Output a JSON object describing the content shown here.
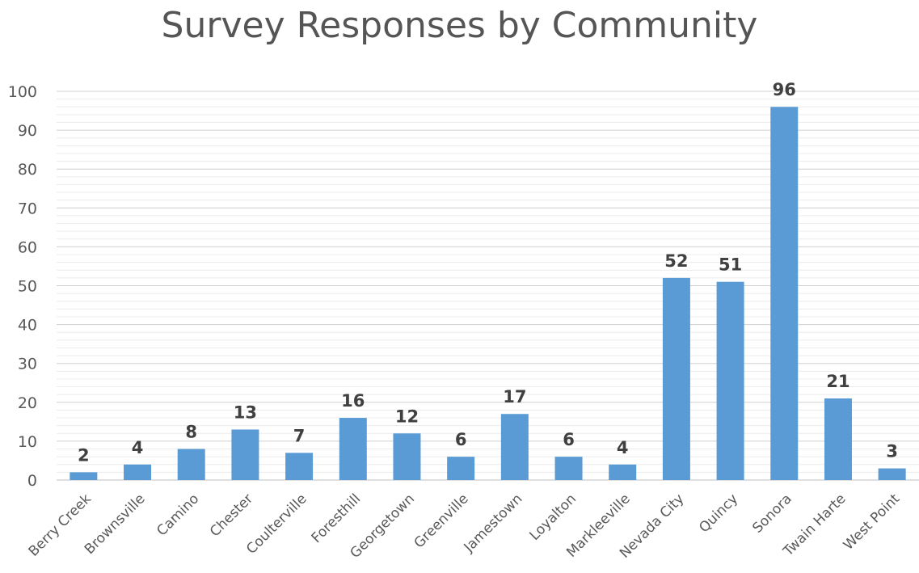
{
  "chart_data": {
    "type": "bar",
    "title": "Survey Responses by Community",
    "categories": [
      "Berry Creek",
      "Brownsville",
      "Camino",
      "Chester",
      "Coulterville",
      "Foresthill",
      "Georgetown",
      "Greenville",
      "Jamestown",
      "Loyalton",
      "Markleeville",
      "Nevada City",
      "Quincy",
      "Sonora",
      "Twain Harte",
      "West Point"
    ],
    "values": [
      2,
      4,
      8,
      13,
      7,
      16,
      12,
      6,
      17,
      6,
      4,
      52,
      51,
      96,
      21,
      3
    ],
    "yticks": [
      0,
      10,
      20,
      30,
      40,
      50,
      60,
      70,
      80,
      90,
      100
    ],
    "ylim": [
      0,
      100
    ],
    "grid": true,
    "bar_color": "#5B9BD5",
    "data_labels": true
  }
}
